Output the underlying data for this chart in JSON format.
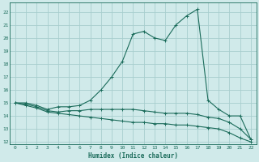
{
  "xlabel": "Humidex (Indice chaleur)",
  "bg_color": "#d0eaea",
  "grid_color": "#a8cece",
  "line_color": "#1a6b5a",
  "line1_x": [
    0,
    1,
    2,
    3,
    4,
    5,
    6,
    7,
    8,
    9,
    10,
    11,
    12,
    13,
    14,
    15,
    16,
    17,
    18,
    19,
    20,
    21,
    22
  ],
  "line1_y": [
    15.0,
    15.0,
    14.8,
    14.5,
    14.7,
    14.7,
    14.8,
    15.2,
    16.0,
    17.0,
    18.2,
    20.3,
    20.5,
    20.0,
    19.8,
    21.0,
    21.7,
    22.2,
    15.2,
    14.5,
    14.0,
    14.0,
    12.2
  ],
  "line2_x": [
    0,
    1,
    2,
    3,
    4,
    5,
    6,
    7,
    8,
    9,
    10,
    11,
    12,
    13,
    14,
    15,
    16,
    17,
    18,
    19,
    20,
    21,
    22
  ],
  "line2_y": [
    15.0,
    14.9,
    14.7,
    14.4,
    14.3,
    14.4,
    14.4,
    14.5,
    14.5,
    14.5,
    14.5,
    14.5,
    14.4,
    14.3,
    14.2,
    14.2,
    14.2,
    14.1,
    13.9,
    13.8,
    13.5,
    13.0,
    12.2
  ],
  "line3_x": [
    0,
    1,
    2,
    3,
    4,
    5,
    6,
    7,
    8,
    9,
    10,
    11,
    12,
    13,
    14,
    15,
    16,
    17,
    18,
    19,
    20,
    21,
    22
  ],
  "line3_y": [
    15.0,
    14.8,
    14.6,
    14.3,
    14.2,
    14.1,
    14.0,
    13.9,
    13.8,
    13.7,
    13.6,
    13.5,
    13.5,
    13.4,
    13.4,
    13.3,
    13.3,
    13.2,
    13.1,
    13.0,
    12.7,
    12.3,
    12.0
  ],
  "ylim": [
    11.8,
    22.7
  ],
  "xlim": [
    -0.5,
    22.5
  ],
  "yticks": [
    12,
    13,
    14,
    15,
    16,
    17,
    18,
    19,
    20,
    21,
    22
  ],
  "xticks": [
    0,
    1,
    2,
    3,
    4,
    5,
    6,
    7,
    8,
    9,
    10,
    11,
    12,
    13,
    14,
    15,
    16,
    17,
    18,
    19,
    20,
    21,
    22
  ]
}
